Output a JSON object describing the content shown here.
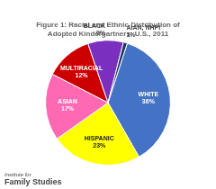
{
  "chart_data": {
    "type": "pie",
    "title": "Figure 1: Racial and Ethnic Distribution of\nAdopted Kindergartners: U.S., 2011",
    "categories": [
      "WHITE",
      "HISPANIC",
      "ASIAN",
      "MULTIRACIAL",
      "BLACK",
      "AIAN, NHPI"
    ],
    "values": [
      36,
      23,
      17,
      12,
      9,
      1
    ],
    "value_labels": [
      "36%",
      "23%",
      "17%",
      "12%",
      "9%",
      "1%"
    ],
    "colors": [
      "#4472C4",
      "#FFFF00",
      "#FF69B4",
      "#CC0000",
      "#7B2FBE",
      "#1F3864"
    ],
    "data_labels": true,
    "annotations": [
      "Institute for",
      "Family Studies"
    ]
  }
}
